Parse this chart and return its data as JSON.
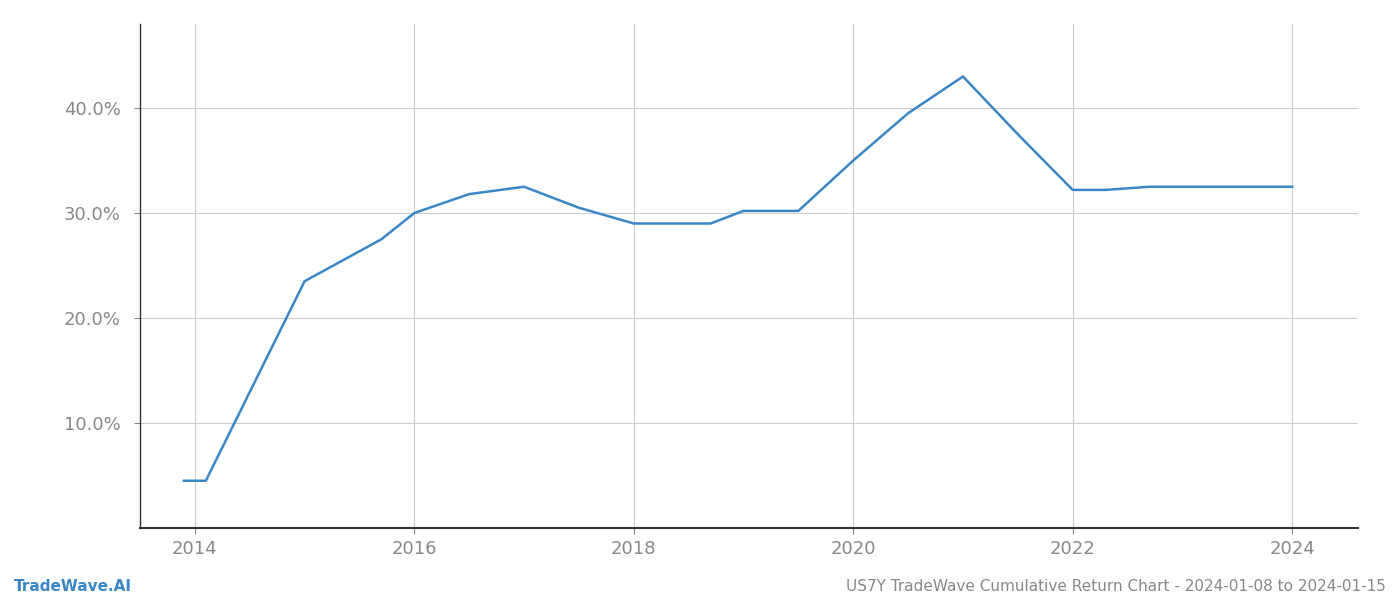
{
  "x_years": [
    2013.9,
    2014.1,
    2015.0,
    2015.7,
    2016.0,
    2016.5,
    2017.0,
    2017.5,
    2018.0,
    2018.3,
    2018.7,
    2019.0,
    2019.5,
    2020.0,
    2020.5,
    2021.0,
    2021.5,
    2022.0,
    2022.3,
    2022.7,
    2023.0,
    2023.5,
    2024.0
  ],
  "y_values": [
    4.5,
    4.5,
    23.5,
    27.5,
    30.0,
    31.8,
    32.5,
    30.5,
    29.0,
    29.0,
    29.0,
    30.2,
    30.2,
    35.0,
    39.5,
    43.0,
    37.5,
    32.2,
    32.2,
    32.5,
    32.5,
    32.5,
    32.5
  ],
  "line_color": "#3a87c8",
  "line_width": 1.8,
  "footer_left": "TradeWave.AI",
  "footer_right": "US7Y TradeWave Cumulative Return Chart - 2024-01-08 to 2024-01-15",
  "xlim": [
    2013.5,
    2024.6
  ],
  "ylim": [
    0,
    48
  ],
  "yticks": [
    10.0,
    20.0,
    30.0,
    40.0
  ],
  "ytick_labels": [
    "10.0%",
    "20.0%",
    "30.0%",
    "40.0%"
  ],
  "xticks": [
    2014,
    2016,
    2018,
    2020,
    2022,
    2024
  ],
  "grid_color": "#cccccc",
  "background_color": "#ffffff",
  "footer_fontsize": 11,
  "tick_fontsize": 13,
  "spine_color": "#333333"
}
